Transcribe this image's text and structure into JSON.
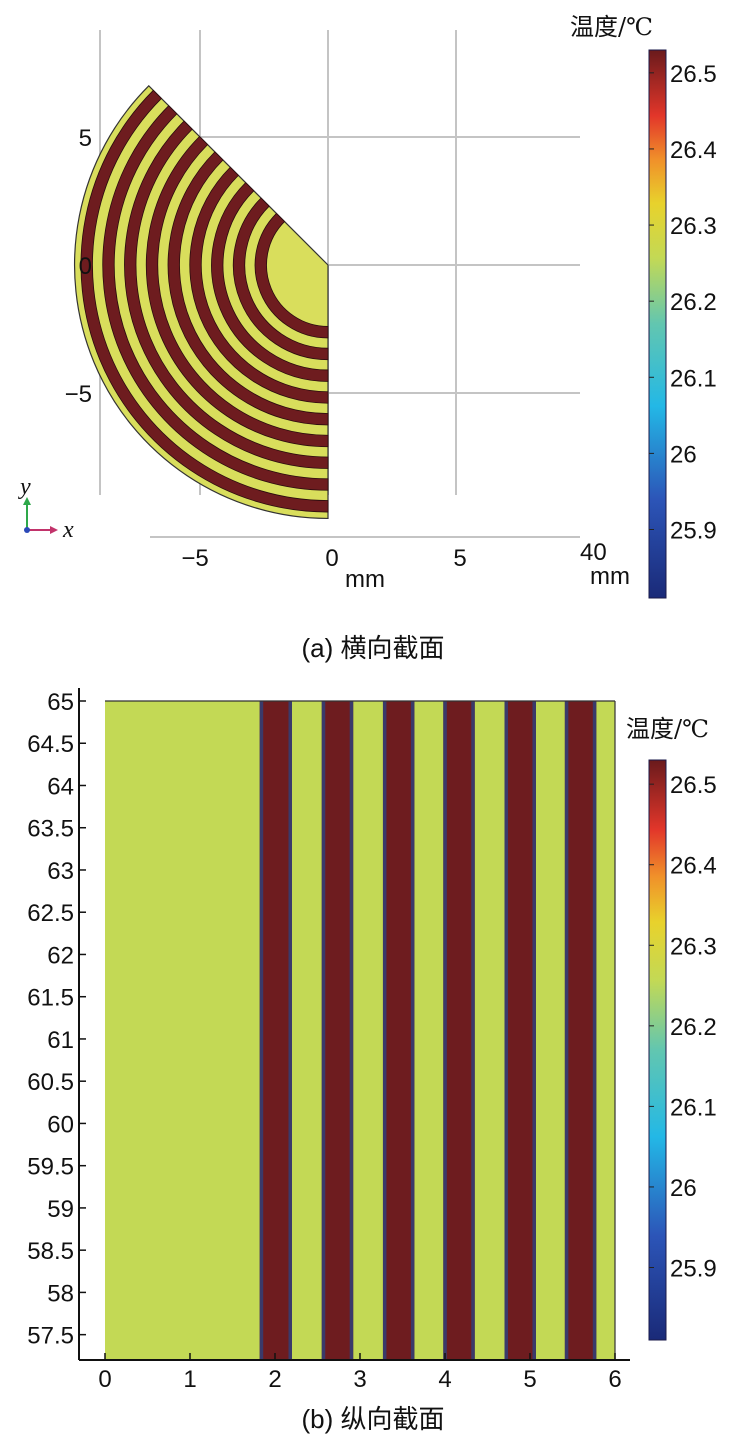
{
  "colors": {
    "hot": "#6e1c1f",
    "cool": "#d9de5c",
    "cool_b": "#c3d955",
    "grid": "#c4c4c4",
    "outline": "#333333"
  },
  "chart_data": [
    {
      "type": "heatmap",
      "caption": "(a) 横向截面",
      "x_ticks": [
        "−5",
        "0",
        "5"
      ],
      "y_ticks": [
        "5",
        "0",
        "−5"
      ],
      "xlabel": "mm",
      "xlim": [
        -7.5,
        10.5
      ],
      "ylim": [
        -10,
        9.2
      ],
      "grid": true,
      "sector": {
        "start_angle_deg": 135,
        "end_angle_deg": 270,
        "outer_radius_mm": 9.9,
        "inner_core_radius_mm": 2.0
      },
      "hot_rings_mm": [
        [
          2.4,
          2.85
        ],
        [
          3.25,
          3.7
        ],
        [
          4.1,
          4.55
        ],
        [
          4.95,
          5.4
        ],
        [
          5.8,
          6.25
        ],
        [
          6.65,
          7.1
        ],
        [
          7.5,
          7.95
        ],
        [
          8.35,
          8.8
        ],
        [
          9.2,
          9.65
        ]
      ],
      "axis_triad": {
        "y": "y",
        "x": "x"
      },
      "colorbar": {
        "title": "温度/℃",
        "tick_labels": [
          "26.5",
          "26.4",
          "26.3",
          "26.2",
          "26.1",
          "26",
          "25.9"
        ],
        "tick_values": [
          26.5,
          26.4,
          26.3,
          26.2,
          26.1,
          26.0,
          25.9
        ],
        "range": [
          25.81,
          26.53
        ],
        "extra_labels": [
          "40",
          "mm"
        ]
      }
    },
    {
      "type": "heatmap",
      "caption": "(b) 纵向截面",
      "x_ticks": [
        "0",
        "1",
        "2",
        "3",
        "4",
        "5",
        "6"
      ],
      "y_ticks": [
        "65",
        "64.5",
        "64",
        "63.5",
        "63",
        "62.5",
        "62",
        "61.5",
        "61",
        "60.5",
        "60",
        "59.5",
        "59",
        "58.5",
        "58",
        "57.5"
      ],
      "xlim": [
        0,
        6
      ],
      "ylim": [
        57.2,
        65
      ],
      "hot_bands_x": [
        [
          1.82,
          2.2
        ],
        [
          2.55,
          2.92
        ],
        [
          3.27,
          3.64
        ],
        [
          3.98,
          4.35
        ],
        [
          4.7,
          5.07
        ],
        [
          5.41,
          5.78
        ]
      ],
      "colorbar": {
        "title": "温度/℃",
        "tick_labels": [
          "26.5",
          "26.4",
          "26.3",
          "26.2",
          "26.1",
          "26",
          "25.9"
        ],
        "tick_values": [
          26.5,
          26.4,
          26.3,
          26.2,
          26.1,
          26.0,
          25.9
        ],
        "range": [
          25.81,
          26.53
        ]
      }
    }
  ]
}
